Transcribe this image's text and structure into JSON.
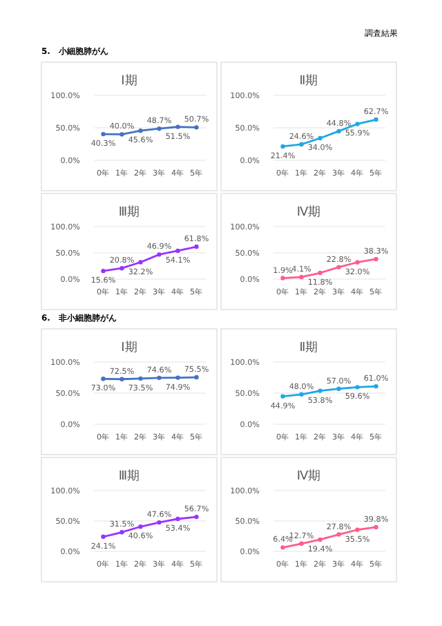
{
  "chart_data": [
    {
      "type": "line",
      "title": "Ⅰ期",
      "annotations": [
        "調査結果",
        "5.　小細胞肺がん"
      ],
      "categories": [
        "0年",
        "1年",
        "2年",
        "3年",
        "4年",
        "5年"
      ],
      "series": [
        {
          "color": "#4472c4",
          "values": [
            40.3,
            40.0,
            45.6,
            48.7,
            51.5,
            50.7
          ],
          "value_labels": [
            "40.3%",
            "40.0%",
            "45.6%",
            "48.7%",
            "51.5%",
            "50.7%"
          ]
        }
      ],
      "ylim": [
        0,
        100
      ],
      "yticks": [
        {
          "value": 0,
          "label": "0.0%"
        },
        {
          "value": 50,
          "label": "50.0%"
        },
        {
          "value": 100,
          "label": "100.0%"
        }
      ],
      "grid": "y",
      "marker": "circle"
    },
    {
      "type": "line",
      "title": "Ⅱ期",
      "categories": [
        "0年",
        "1年",
        "2年",
        "3年",
        "4年",
        "5年"
      ],
      "series": [
        {
          "color": "#1ea7e6",
          "values": [
            21.4,
            24.6,
            34.0,
            44.8,
            55.9,
            62.7
          ],
          "value_labels": [
            "21.4%",
            "24.6%",
            "34.0%",
            "44.8%",
            "55.9%",
            "62.7%"
          ]
        }
      ],
      "ylim": [
        0,
        100
      ],
      "yticks": [
        {
          "value": 0,
          "label": "0.0%"
        },
        {
          "value": 50,
          "label": "50.0%"
        },
        {
          "value": 100,
          "label": "100.0%"
        }
      ],
      "grid": "y",
      "marker": "circle"
    },
    {
      "type": "line",
      "title": "Ⅲ期",
      "categories": [
        "0年",
        "1年",
        "2年",
        "3年",
        "4年",
        "5年"
      ],
      "series": [
        {
          "color": "#9933ff",
          "values": [
            15.6,
            20.8,
            32.2,
            46.9,
            54.1,
            61.8
          ],
          "value_labels": [
            "15.6%",
            "20.8%",
            "32.2%",
            "46.9%",
            "54.1%",
            "61.8%"
          ]
        }
      ],
      "ylim": [
        0,
        100
      ],
      "yticks": [
        {
          "value": 0,
          "label": "0.0%"
        },
        {
          "value": 50,
          "label": "50.0%"
        },
        {
          "value": 100,
          "label": "100.0%"
        }
      ],
      "grid": "y",
      "marker": "circle"
    },
    {
      "type": "line",
      "title": "Ⅳ期",
      "categories": [
        "0年",
        "1年",
        "2年",
        "3年",
        "4年",
        "5年"
      ],
      "series": [
        {
          "color": "#ff5c8a",
          "values": [
            1.9,
            4.1,
            11.8,
            22.8,
            32.0,
            38.3
          ],
          "value_labels": [
            "1.9%",
            "4.1%",
            "11.8%",
            "22.8%",
            "32.0%",
            "38.3%"
          ]
        }
      ],
      "ylim": [
        0,
        100
      ],
      "yticks": [
        {
          "value": 0,
          "label": "0.0%"
        },
        {
          "value": 50,
          "label": "50.0%"
        },
        {
          "value": 100,
          "label": "100.0%"
        }
      ],
      "grid": "y",
      "marker": "circle"
    },
    {
      "type": "line",
      "title": "Ⅰ期",
      "annotations": [
        "6.　非小細胞肺がん"
      ],
      "categories": [
        "0年",
        "1年",
        "2年",
        "3年",
        "4年",
        "5年"
      ],
      "series": [
        {
          "color": "#4472c4",
          "values": [
            73.0,
            72.5,
            73.5,
            74.6,
            74.9,
            75.5
          ],
          "value_labels": [
            "73.0%",
            "72.5%",
            "73.5%",
            "74.6%",
            "74.9%",
            "75.5%"
          ]
        }
      ],
      "ylim": [
        0,
        100
      ],
      "yticks": [
        {
          "value": 0,
          "label": "0.0%"
        },
        {
          "value": 50,
          "label": "50.0%"
        },
        {
          "value": 100,
          "label": "100.0%"
        }
      ],
      "grid": "y",
      "marker": "circle"
    },
    {
      "type": "line",
      "title": "Ⅱ期",
      "categories": [
        "0年",
        "1年",
        "2年",
        "3年",
        "4年",
        "5年"
      ],
      "series": [
        {
          "color": "#1ea7e6",
          "values": [
            44.9,
            48.0,
            53.8,
            57.0,
            59.6,
            61.0
          ],
          "value_labels": [
            "44.9%",
            "48.0%",
            "53.8%",
            "57.0%",
            "59.6%",
            "61.0%"
          ]
        }
      ],
      "ylim": [
        0,
        100
      ],
      "yticks": [
        {
          "value": 0,
          "label": "0.0%"
        },
        {
          "value": 50,
          "label": "50.0%"
        },
        {
          "value": 100,
          "label": "100.0%"
        }
      ],
      "grid": "y",
      "marker": "circle"
    },
    {
      "type": "line",
      "title": "Ⅲ期",
      "categories": [
        "0年",
        "1年",
        "2年",
        "3年",
        "4年",
        "5年"
      ],
      "series": [
        {
          "color": "#9933ff",
          "values": [
            24.1,
            31.5,
            40.6,
            47.6,
            53.4,
            56.7
          ],
          "value_labels": [
            "24.1%",
            "31.5%",
            "40.6%",
            "47.6%",
            "53.4%",
            "56.7%"
          ]
        }
      ],
      "ylim": [
        0,
        100
      ],
      "yticks": [
        {
          "value": 0,
          "label": "0.0%"
        },
        {
          "value": 50,
          "label": "50.0%"
        },
        {
          "value": 100,
          "label": "100.0%"
        }
      ],
      "grid": "y",
      "marker": "circle"
    },
    {
      "type": "line",
      "title": "Ⅳ期",
      "categories": [
        "0年",
        "1年",
        "2年",
        "3年",
        "4年",
        "5年"
      ],
      "series": [
        {
          "color": "#ff5c8a",
          "values": [
            6.4,
            12.7,
            19.4,
            27.8,
            35.5,
            39.8
          ],
          "value_labels": [
            "6.4%",
            "12.7%",
            "19.4%",
            "27.8%",
            "35.5%",
            "39.8%"
          ]
        }
      ],
      "ylim": [
        0,
        100
      ],
      "yticks": [
        {
          "value": 0,
          "label": "0.0%"
        },
        {
          "value": 50,
          "label": "50.0%"
        },
        {
          "value": 100,
          "label": "100.0%"
        }
      ],
      "grid": "y",
      "marker": "circle"
    }
  ]
}
